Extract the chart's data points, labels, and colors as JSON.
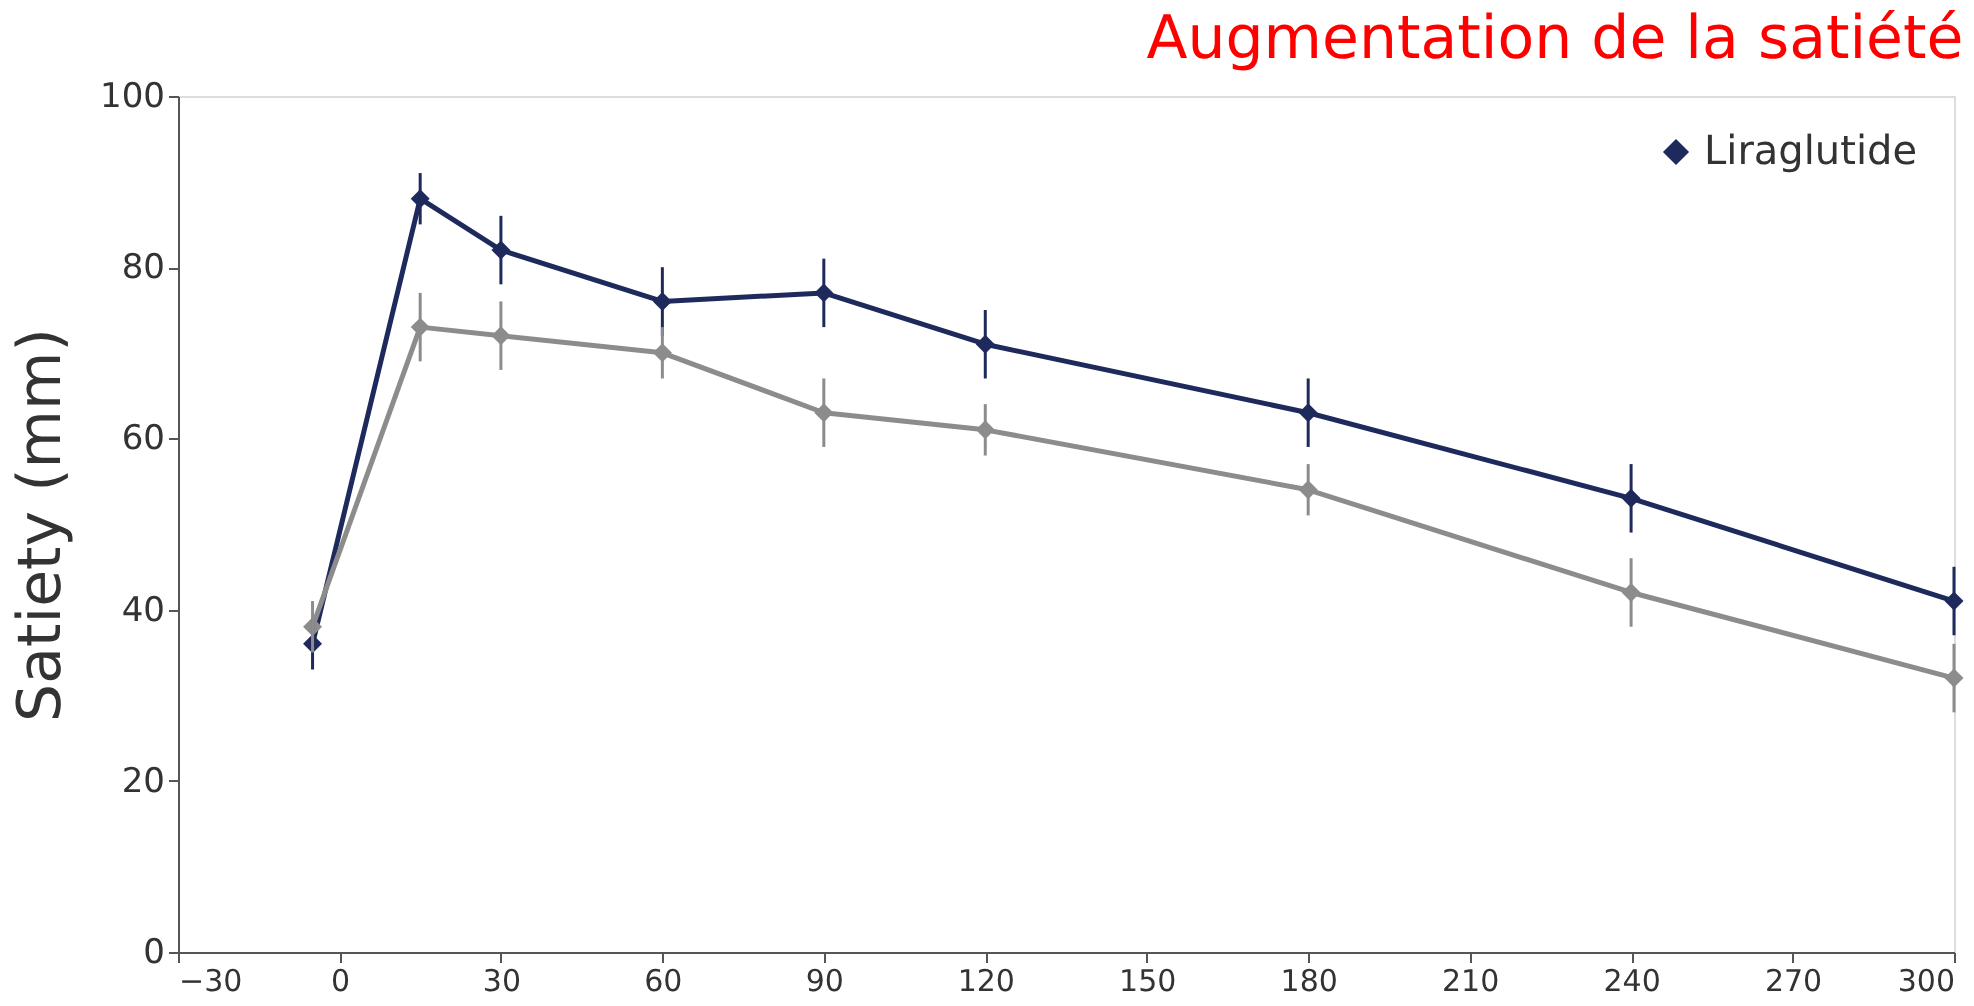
{
  "chart_data": {
    "type": "line",
    "title": "Augmentation de la satiété",
    "ylabel": "Satiety (mm)",
    "x": [
      -5,
      15,
      30,
      60,
      90,
      120,
      180,
      240,
      300
    ],
    "series": [
      {
        "name": "Liraglutide",
        "color": "#1f2a5c",
        "values": [
          36,
          88,
          82,
          76,
          77,
          71,
          63,
          53,
          41
        ],
        "errors": [
          3,
          3,
          4,
          4,
          4,
          4,
          4,
          4,
          4
        ]
      },
      {
        "color": "#8c8c8c",
        "values": [
          38,
          73,
          72,
          70,
          63,
          61,
          54,
          42,
          32
        ],
        "errors": [
          3,
          4,
          4,
          3,
          4,
          3,
          3,
          4,
          4
        ]
      }
    ],
    "xlim": [
      -30,
      300
    ],
    "xticks": [
      -30,
      0,
      30,
      60,
      90,
      120,
      150,
      180,
      210,
      240,
      270,
      300
    ],
    "ylim": [
      0,
      100
    ],
    "yticks": [
      0,
      20,
      40,
      60,
      80,
      100
    ],
    "grid": false,
    "legend": "top right",
    "marker": "diamond",
    "line_style": "solid"
  }
}
